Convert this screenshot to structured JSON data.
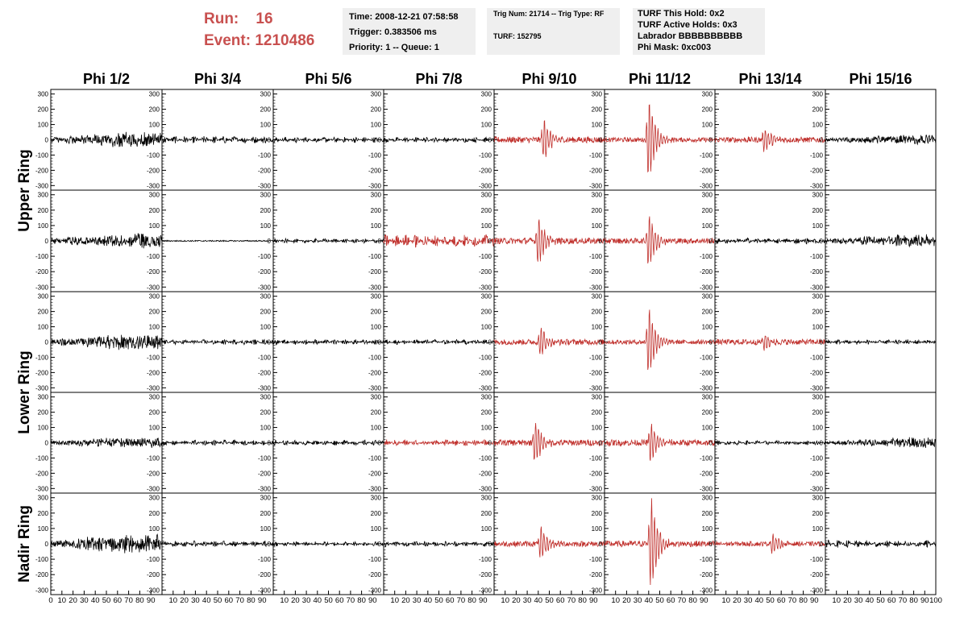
{
  "header": {
    "run_label": "Run:",
    "run_value": "16",
    "event_label": "Event:",
    "event_value": "1210486",
    "time": "Time: 2008-12-21 07:58:58",
    "trigger": "Trigger: 0.383506 ms",
    "priority": "Priority: 1 -- Queue: 1",
    "trig_num": "Trig Num: 21714 -- Trig Type: RF",
    "turf": "TURF: 152795",
    "turf_hold": "TURF This Hold: 0x2",
    "turf_active": "TURF Active Holds: 0x3",
    "labrador": "Labrador BBBBBBBBBB",
    "phi_mask": "Phi Mask: 0xc003"
  },
  "colors": {
    "normal_trace": "#000000",
    "triggered_trace": "#c0302c",
    "run_text": "#c8504f",
    "info_box": "#efefef"
  },
  "chart_data": {
    "type": "line",
    "columns": [
      "Phi 1/2",
      "Phi 3/4",
      "Phi 5/6",
      "Phi 7/8",
      "Phi 9/10",
      "Phi 11/12",
      "Phi 13/14",
      "Phi 15/16"
    ],
    "rows": [
      "Upper Ring",
      "Upper Ring",
      "Lower Ring",
      "Lower Ring",
      "Nadir Ring"
    ],
    "row_labels": [
      {
        "label": "Upper Ring",
        "rows": [
          0,
          1
        ]
      },
      {
        "label": "Lower Ring",
        "rows": [
          2,
          3
        ]
      },
      {
        "label": "Nadir Ring",
        "rows": [
          4
        ]
      }
    ],
    "xlim": [
      0,
      100
    ],
    "ylim": [
      -330,
      330
    ],
    "y_ticks": [
      -300,
      -200,
      -100,
      0,
      100,
      200,
      300
    ],
    "x_tick_labels": [
      "0",
      "10",
      "20",
      "30",
      "40",
      "50",
      "60",
      "70",
      "80",
      "90",
      "100"
    ],
    "grid": false,
    "panels": [
      [
        {
          "style": "noisy-grow",
          "amp": 60,
          "peak": 0,
          "center": 0,
          "triggered": false
        },
        {
          "style": "noise",
          "amp": 25,
          "peak": 0,
          "center": 0,
          "triggered": false
        },
        {
          "style": "noise",
          "amp": 20,
          "peak": 0,
          "center": 0,
          "triggered": false
        },
        {
          "style": "noise",
          "amp": 18,
          "peak": 0,
          "center": 0,
          "triggered": false
        },
        {
          "style": "pulse",
          "amp": 20,
          "peak": 150,
          "center": 45,
          "triggered": true
        },
        {
          "style": "pulse",
          "amp": 15,
          "peak": 290,
          "center": 40,
          "triggered": true
        },
        {
          "style": "pulse",
          "amp": 18,
          "peak": 90,
          "center": 45,
          "triggered": true
        },
        {
          "style": "noisy-grow",
          "amp": 35,
          "peak": 0,
          "center": 0,
          "triggered": false
        }
      ],
      [
        {
          "style": "noisy-grow",
          "amp": 55,
          "peak": 0,
          "center": 0,
          "triggered": false
        },
        {
          "style": "flat",
          "amp": 4,
          "peak": 0,
          "center": 0,
          "triggered": false
        },
        {
          "style": "noise",
          "amp": 15,
          "peak": 0,
          "center": 0,
          "triggered": false
        },
        {
          "style": "noise",
          "amp": 45,
          "peak": 0,
          "center": 0,
          "triggered": true
        },
        {
          "style": "pulse",
          "amp": 20,
          "peak": 170,
          "center": 40,
          "triggered": true
        },
        {
          "style": "pulse",
          "amp": 18,
          "peak": 190,
          "center": 40,
          "triggered": true
        },
        {
          "style": "noise",
          "amp": 20,
          "peak": 0,
          "center": 0,
          "triggered": false
        },
        {
          "style": "noisy-grow",
          "amp": 45,
          "peak": 0,
          "center": 0,
          "triggered": false
        }
      ],
      [
        {
          "style": "noisy-grow",
          "amp": 60,
          "peak": 0,
          "center": 0,
          "triggered": false
        },
        {
          "style": "noise",
          "amp": 18,
          "peak": 0,
          "center": 0,
          "triggered": false
        },
        {
          "style": "noise",
          "amp": 18,
          "peak": 0,
          "center": 0,
          "triggered": false
        },
        {
          "style": "noise",
          "amp": 18,
          "peak": 0,
          "center": 0,
          "triggered": false
        },
        {
          "style": "pulse",
          "amp": 18,
          "peak": 110,
          "center": 42,
          "triggered": true
        },
        {
          "style": "pulse",
          "amp": 15,
          "peak": 250,
          "center": 40,
          "triggered": true
        },
        {
          "style": "pulse",
          "amp": 18,
          "peak": 60,
          "center": 45,
          "triggered": true
        },
        {
          "style": "noise",
          "amp": 18,
          "peak": 0,
          "center": 0,
          "triggered": false
        }
      ],
      [
        {
          "style": "noisy-grow",
          "amp": 40,
          "peak": 0,
          "center": 0,
          "triggered": false
        },
        {
          "style": "noise",
          "amp": 18,
          "peak": 0,
          "center": 0,
          "triggered": false
        },
        {
          "style": "noise",
          "amp": 18,
          "peak": 0,
          "center": 0,
          "triggered": false
        },
        {
          "style": "noise",
          "amp": 22,
          "peak": 0,
          "center": 0,
          "triggered": true
        },
        {
          "style": "pulse",
          "amp": 20,
          "peak": 160,
          "center": 37,
          "triggered": true
        },
        {
          "style": "pulse",
          "amp": 20,
          "peak": 140,
          "center": 42,
          "triggered": true
        },
        {
          "style": "noise",
          "amp": 15,
          "peak": 0,
          "center": 0,
          "triggered": false
        },
        {
          "style": "noisy-grow",
          "amp": 40,
          "peak": 0,
          "center": 0,
          "triggered": false
        }
      ],
      [
        {
          "style": "noisy-grow",
          "amp": 70,
          "peak": 0,
          "center": 0,
          "triggered": false
        },
        {
          "style": "noise",
          "amp": 20,
          "peak": 0,
          "center": 0,
          "triggered": false
        },
        {
          "style": "noise",
          "amp": 15,
          "peak": 0,
          "center": 0,
          "triggered": false
        },
        {
          "style": "noise",
          "amp": 18,
          "peak": 0,
          "center": 0,
          "triggered": false
        },
        {
          "style": "pulse",
          "amp": 18,
          "peak": 120,
          "center": 42,
          "triggered": true
        },
        {
          "style": "pulse",
          "amp": 20,
          "peak": 330,
          "center": 42,
          "triggered": true
        },
        {
          "style": "pulse",
          "amp": 15,
          "peak": 70,
          "center": 52,
          "triggered": true
        },
        {
          "style": "noise",
          "amp": 25,
          "peak": 0,
          "center": 0,
          "triggered": false
        }
      ]
    ]
  }
}
